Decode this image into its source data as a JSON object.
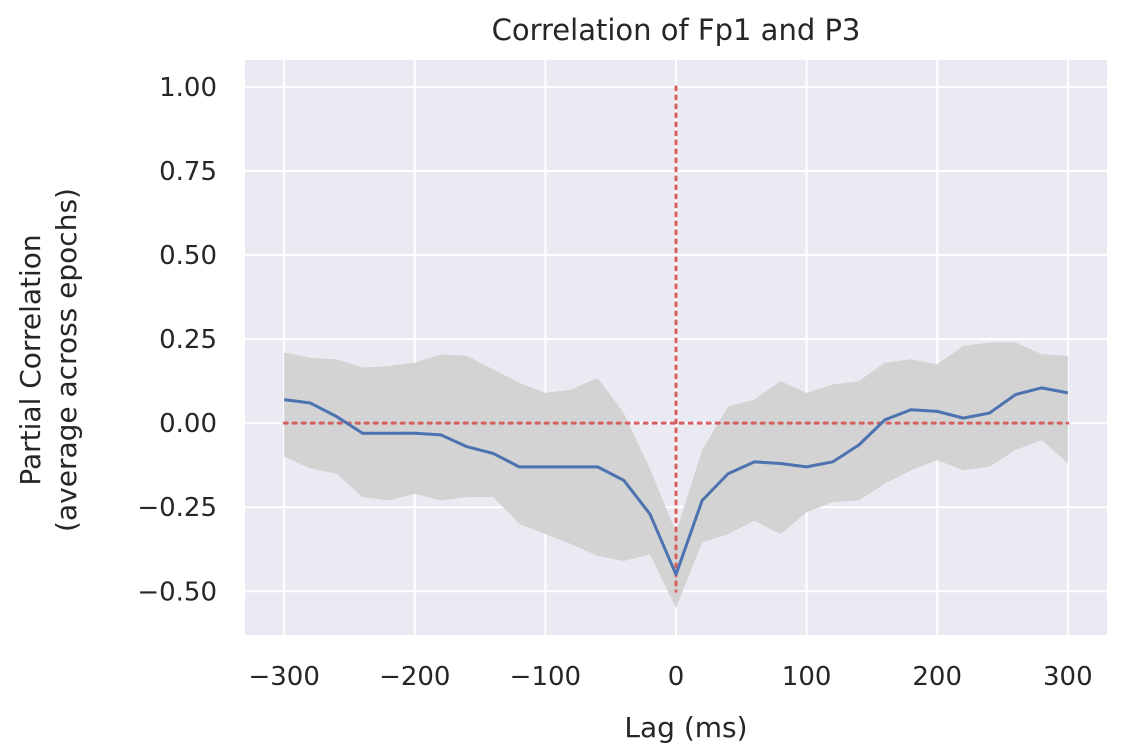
{
  "chart_data": {
    "type": "line",
    "title": "Correlation of Fp1 and P3",
    "xlabel": "Lag (ms)",
    "ylabel": [
      "Partial Correlation",
      "(average across epochs)"
    ],
    "xlim": [
      -330,
      330
    ],
    "ylim": [
      -0.63,
      1.08
    ],
    "xticks": [
      -300,
      -200,
      -100,
      0,
      100,
      200,
      300
    ],
    "xtick_labels": [
      "−300",
      "−200",
      "−100",
      "0",
      "100",
      "200",
      "300"
    ],
    "yticks": [
      1.0,
      0.75,
      0.5,
      0.25,
      0.0,
      -0.25,
      -0.5
    ],
    "ytick_labels": [
      "1.00",
      "0.75",
      "0.50",
      "0.25",
      "0.00",
      "−0.25",
      "−0.50"
    ],
    "grid": true,
    "x": [
      -300,
      -280,
      -260,
      -240,
      -220,
      -200,
      -180,
      -160,
      -140,
      -120,
      -100,
      -80,
      -60,
      -40,
      -20,
      0,
      20,
      40,
      60,
      80,
      100,
      120,
      140,
      160,
      180,
      200,
      220,
      240,
      260,
      280,
      300
    ],
    "series": [
      {
        "values": [
          0.07,
          0.06,
          0.02,
          -0.03,
          -0.03,
          -0.03,
          -0.035,
          -0.07,
          -0.09,
          -0.13,
          -0.13,
          -0.13,
          -0.13,
          -0.17,
          -0.27,
          -0.45,
          -0.23,
          -0.15,
          -0.115,
          -0.12,
          -0.13,
          -0.115,
          -0.065,
          0.01,
          0.04,
          0.035,
          0.015,
          0.03,
          0.085,
          0.105,
          0.09
        ],
        "lower": [
          -0.1,
          -0.135,
          -0.15,
          -0.22,
          -0.23,
          -0.21,
          -0.23,
          -0.22,
          -0.22,
          -0.3,
          -0.33,
          -0.36,
          -0.395,
          -0.41,
          -0.39,
          -0.55,
          -0.355,
          -0.33,
          -0.29,
          -0.33,
          -0.265,
          -0.235,
          -0.23,
          -0.18,
          -0.14,
          -0.11,
          -0.14,
          -0.13,
          -0.08,
          -0.05,
          -0.12
        ],
        "upper": [
          0.21,
          0.195,
          0.19,
          0.165,
          0.17,
          0.18,
          0.205,
          0.2,
          0.16,
          0.12,
          0.09,
          0.1,
          0.135,
          0.03,
          -0.135,
          -0.325,
          -0.08,
          0.05,
          0.07,
          0.125,
          0.09,
          0.115,
          0.125,
          0.18,
          0.19,
          0.175,
          0.23,
          0.24,
          0.24,
          0.205,
          0.2
        ],
        "color": "#4c72b0",
        "band_color": "#d3d3d3"
      }
    ],
    "reference_lines": {
      "color": "#d65f5f",
      "style": "dotted",
      "horizontal_y": 0,
      "vertical_x": 0,
      "horizontal_x_range": [
        -300,
        300
      ],
      "vertical_y_range": [
        -0.5,
        1.0
      ]
    },
    "colors": {
      "plot_background": "#eaeaf2",
      "grid": "#ffffff"
    }
  }
}
